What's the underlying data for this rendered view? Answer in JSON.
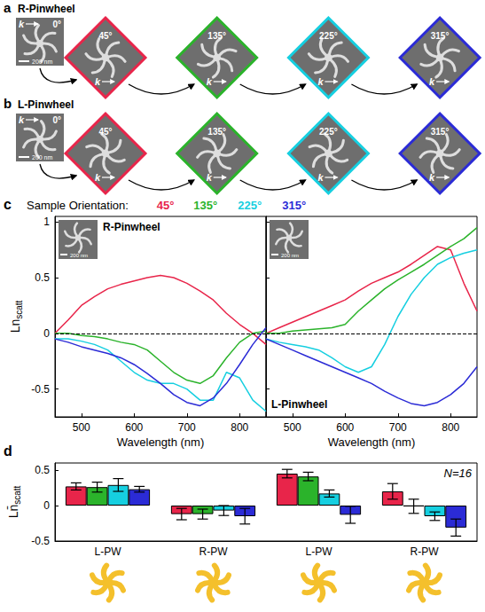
{
  "image_rows": [
    {
      "letter": "a",
      "title": "R-Pinwheel"
    },
    {
      "letter": "b",
      "title": "L-Pinwheel"
    }
  ],
  "orientations": [
    {
      "value": 0,
      "label": "0°"
    },
    {
      "value": 45,
      "label": "45°",
      "color": "#e8254a"
    },
    {
      "value": 135,
      "label": "135°",
      "color": "#2bb32b"
    },
    {
      "value": 225,
      "label": "225°",
      "color": "#16cfe0"
    },
    {
      "value": 315,
      "label": "315°",
      "color": "#2b2bd6"
    }
  ],
  "scale_bar": "200 nm",
  "wavevector_label": "k",
  "legend_title": "Sample Orientation:",
  "chart_data": [
    {
      "type": "line",
      "letter": "c",
      "title": "R-Pinwheel",
      "xlabel": "Wavelength (nm)",
      "ylabel": "Ln",
      "ylabel_sub": "scatt",
      "x": [
        450,
        475,
        500,
        525,
        550,
        575,
        600,
        625,
        650,
        675,
        700,
        725,
        750,
        775,
        800,
        825,
        850
      ],
      "xlim": [
        450,
        850
      ],
      "xticks": [
        500,
        600,
        700,
        800
      ],
      "ylim": [
        -0.75,
        1.05
      ],
      "yticks": [
        -0.5,
        0,
        0.5,
        1
      ],
      "hline": 0,
      "series": [
        {
          "name": "45°",
          "color": "#e8254a",
          "values": [
            0,
            0.12,
            0.25,
            0.33,
            0.4,
            0.44,
            0.47,
            0.5,
            0.52,
            0.5,
            0.45,
            0.38,
            0.3,
            0.18,
            0.08,
            0,
            -0.1
          ]
        },
        {
          "name": "135°",
          "color": "#2bb32b",
          "values": [
            0,
            0,
            -0.02,
            -0.03,
            -0.05,
            -0.08,
            -0.1,
            -0.15,
            -0.25,
            -0.35,
            -0.42,
            -0.45,
            -0.38,
            -0.22,
            -0.08,
            0,
            0.02
          ]
        },
        {
          "name": "225°",
          "color": "#16cfe0",
          "values": [
            -0.05,
            -0.05,
            -0.07,
            -0.1,
            -0.15,
            -0.25,
            -0.35,
            -0.42,
            -0.45,
            -0.45,
            -0.5,
            -0.6,
            -0.6,
            -0.35,
            -0.4,
            -0.6,
            -0.7
          ]
        },
        {
          "name": "315°",
          "color": "#2b2bd6",
          "values": [
            -0.05,
            -0.08,
            -0.12,
            -0.15,
            -0.18,
            -0.22,
            -0.28,
            -0.36,
            -0.45,
            -0.55,
            -0.62,
            -0.65,
            -0.58,
            -0.45,
            -0.28,
            -0.1,
            0.05
          ]
        }
      ]
    },
    {
      "type": "line",
      "title": "L-Pinwheel",
      "xlabel": "Wavelength (nm)",
      "tick_labels": "x",
      "x": [
        450,
        475,
        500,
        525,
        550,
        575,
        600,
        625,
        650,
        675,
        700,
        725,
        750,
        775,
        800,
        825,
        850
      ],
      "xlim": [
        450,
        850
      ],
      "xticks": [
        500,
        600,
        700,
        800
      ],
      "ylim": [
        -0.75,
        1.05
      ],
      "yticks": [
        -0.5,
        0,
        0.5,
        1
      ],
      "hline": 0,
      "series": [
        {
          "name": "45°",
          "color": "#e8254a",
          "values": [
            0,
            0.05,
            0.1,
            0.15,
            0.2,
            0.25,
            0.3,
            0.38,
            0.45,
            0.5,
            0.55,
            0.62,
            0.7,
            0.78,
            0.75,
            0.45,
            0.2
          ]
        },
        {
          "name": "135°",
          "color": "#2bb32b",
          "values": [
            0,
            0,
            0.02,
            0.03,
            0.04,
            0.05,
            0.08,
            0.2,
            0.3,
            0.4,
            0.48,
            0.55,
            0.62,
            0.7,
            0.78,
            0.85,
            0.95
          ]
        },
        {
          "name": "225°",
          "color": "#16cfe0",
          "values": [
            -0.05,
            -0.08,
            -0.1,
            -0.12,
            -0.15,
            -0.22,
            -0.3,
            -0.35,
            -0.3,
            -0.1,
            0.15,
            0.35,
            0.5,
            0.62,
            0.68,
            0.72,
            0.75
          ]
        },
        {
          "name": "315°",
          "color": "#2b2bd6",
          "values": [
            -0.05,
            -0.1,
            -0.15,
            -0.2,
            -0.25,
            -0.3,
            -0.35,
            -0.4,
            -0.45,
            -0.52,
            -0.58,
            -0.63,
            -0.65,
            -0.62,
            -0.55,
            -0.45,
            -0.3
          ]
        }
      ]
    },
    {
      "type": "bar",
      "letter": "d",
      "ylabel": "Ln̄",
      "ylabel_sub": "scatt",
      "annotation": "N=16",
      "categories": [
        "L-PW",
        "R-PW",
        "L-PW",
        "R-PW"
      ],
      "ylim": [
        -0.5,
        0.6
      ],
      "yticks": [
        -0.5,
        0,
        0.5
      ],
      "series": [
        {
          "name": "45°",
          "color": "#e8254a",
          "values": [
            0.27,
            -0.12,
            0.45,
            0.2
          ],
          "errors": [
            0.05,
            0.08,
            0.06,
            0.11
          ]
        },
        {
          "name": "135°",
          "color": "#2bb32b",
          "values": [
            0.26,
            -0.12,
            0.41,
            -0.01
          ],
          "errors": [
            0.07,
            0.07,
            0.06,
            0.1
          ]
        },
        {
          "name": "225°",
          "color": "#16cfe0",
          "values": [
            0.29,
            -0.07,
            0.17,
            -0.15
          ],
          "errors": [
            0.09,
            0.07,
            0.05,
            0.06
          ]
        },
        {
          "name": "315°",
          "color": "#2b2bd6",
          "values": [
            0.23,
            -0.15,
            -0.13,
            -0.31
          ],
          "errors": [
            0.04,
            0.11,
            0.12,
            0.12
          ]
        }
      ]
    }
  ]
}
